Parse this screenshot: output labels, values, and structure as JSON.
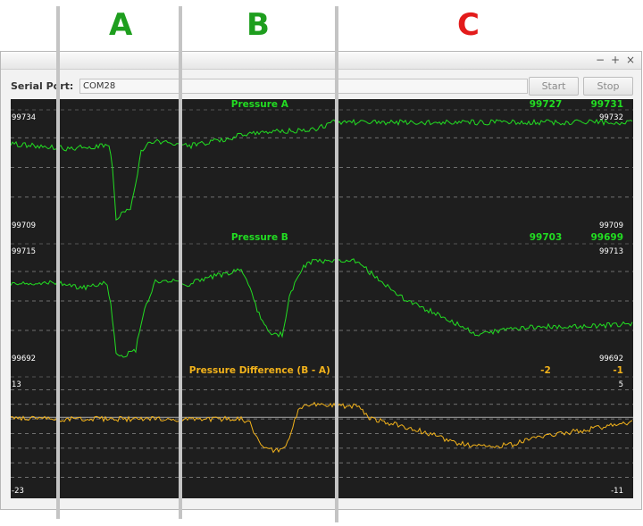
{
  "section_labels": [
    {
      "text": "A",
      "color": "#1e9e1e"
    },
    {
      "text": "B",
      "color": "#1e9e1e"
    },
    {
      "text": "C",
      "color": "#e31b1b"
    }
  ],
  "window": {
    "controls": {
      "minimize": "−",
      "maximize": "+",
      "close": "×"
    },
    "serial_port_label": "Serial Port:",
    "serial_port_value": "COM28",
    "start_label": "Start",
    "stop_label": "Stop"
  },
  "colors": {
    "background": "#1e1e1e",
    "pressure": "#22dd22",
    "difference": "#f2b21b",
    "grid": "#8a8a8a",
    "zero_line": "#9a9a9a",
    "scale_text": "#ffffff",
    "divider": "#c4c4c4"
  },
  "chart_data": [
    {
      "type": "line",
      "title": "Pressure A",
      "readout_left": "99727",
      "readout_right": "99731",
      "y_top_left": "99734",
      "y_bottom_left": "99709",
      "y_top_right": "99732",
      "y_bottom_right": "99709",
      "ylim": [
        99709,
        99734
      ],
      "grid": true,
      "keyframes": [
        [
          0,
          99726.5
        ],
        [
          60,
          99725.5
        ],
        [
          104,
          99726
        ],
        [
          110,
          99726.5
        ],
        [
          114,
          99721
        ],
        [
          118,
          99711
        ],
        [
          124,
          99711.5
        ],
        [
          134,
          99713
        ],
        [
          140,
          99718
        ],
        [
          146,
          99725
        ],
        [
          155,
          99727
        ],
        [
          190,
          99726.5
        ],
        [
          200,
          99726
        ],
        [
          240,
          99727.5
        ],
        [
          270,
          99728.8
        ],
        [
          340,
          99729.5
        ],
        [
          362,
          99731
        ],
        [
          450,
          99731
        ],
        [
          697,
          99731
        ]
      ]
    },
    {
      "type": "line",
      "title": "Pressure B",
      "readout_left": "99703",
      "readout_right": "99699",
      "y_top_left": "99715",
      "y_bottom_left": "99692",
      "y_top_right": "99713",
      "y_bottom_right": "99692",
      "ylim": [
        99692,
        99715
      ],
      "grid": true,
      "keyframes": [
        [
          0,
          99707
        ],
        [
          50,
          99707
        ],
        [
          80,
          99706
        ],
        [
          100,
          99707
        ],
        [
          108,
          99707
        ],
        [
          112,
          99703
        ],
        [
          118,
          99693
        ],
        [
          128,
          99693
        ],
        [
          140,
          99694
        ],
        [
          150,
          99702
        ],
        [
          162,
          99707.5
        ],
        [
          185,
          99707.5
        ],
        [
          195,
          99706.5
        ],
        [
          220,
          99708
        ],
        [
          245,
          99709
        ],
        [
          258,
          99710
        ],
        [
          265,
          99707
        ],
        [
          280,
          99700
        ],
        [
          290,
          99697
        ],
        [
          305,
          99697
        ],
        [
          312,
          99704
        ],
        [
          322,
          99708.5
        ],
        [
          332,
          99711
        ],
        [
          360,
          99711.5
        ],
        [
          385,
          99711.5
        ],
        [
          410,
          99708
        ],
        [
          440,
          99704
        ],
        [
          470,
          99701.5
        ],
        [
          500,
          99699
        ],
        [
          520,
          99697
        ],
        [
          540,
          99697.5
        ],
        [
          580,
          99698.5
        ],
        [
          640,
          99698.5
        ],
        [
          697,
          99699
        ]
      ]
    },
    {
      "type": "line",
      "title": "Pressure Difference (B - A)",
      "readout_left": "-2",
      "readout_right": "-1",
      "y_top_left": "13",
      "y_bottom_left": "-23",
      "y_top_right": "5",
      "y_bottom_right": "-11",
      "ylim": [
        -23,
        13
      ],
      "grid": true,
      "keyframes": [
        [
          0,
          -0.5
        ],
        [
          60,
          -0.5
        ],
        [
          100,
          -0.5
        ],
        [
          195,
          -0.5
        ],
        [
          258,
          -0.5
        ],
        [
          268,
          -2
        ],
        [
          278,
          -8
        ],
        [
          292,
          -10
        ],
        [
          305,
          -10
        ],
        [
          312,
          -6
        ],
        [
          322,
          2
        ],
        [
          333,
          4
        ],
        [
          365,
          3.5
        ],
        [
          388,
          3.5
        ],
        [
          400,
          0
        ],
        [
          420,
          -1.5
        ],
        [
          450,
          -3.5
        ],
        [
          480,
          -6
        ],
        [
          500,
          -8
        ],
        [
          535,
          -9
        ],
        [
          560,
          -8.5
        ],
        [
          600,
          -5.5
        ],
        [
          640,
          -4
        ],
        [
          697,
          -1.5
        ]
      ]
    }
  ]
}
